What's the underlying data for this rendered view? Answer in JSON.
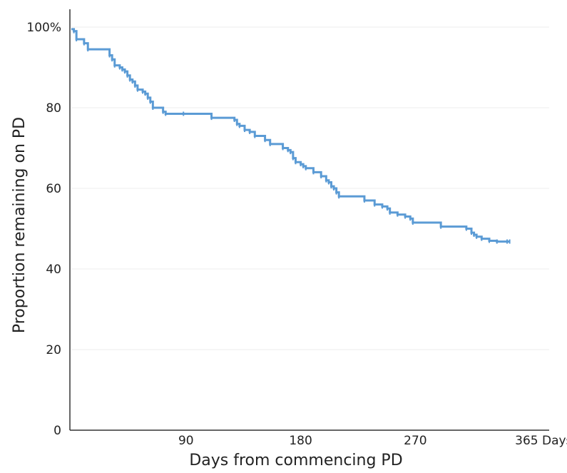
{
  "chart_data": {
    "type": "line",
    "step": true,
    "xlabel": "Days from commencing PD",
    "ylabel": "Proportion remaining on PD",
    "xlim": [
      0,
      375
    ],
    "ylim": [
      0,
      100
    ],
    "x_ticks": [
      {
        "value": 90,
        "label": "90"
      },
      {
        "value": 180,
        "label": "180"
      },
      {
        "value": 270,
        "label": "270"
      },
      {
        "value": 365,
        "label": "365 Days"
      }
    ],
    "y_ticks": [
      {
        "value": 0,
        "label": "0"
      },
      {
        "value": 20,
        "label": "20"
      },
      {
        "value": 40,
        "label": "40"
      },
      {
        "value": 60,
        "label": "60"
      },
      {
        "value": 80,
        "label": "80"
      },
      {
        "value": 100,
        "label": "100%"
      }
    ],
    "grid": true,
    "series": [
      {
        "color": "#5b9bd5",
        "x": [
          0,
          2,
          4,
          10,
          13,
          30,
          32,
          34,
          38,
          40,
          42,
          44,
          46,
          48,
          50,
          52,
          56,
          58,
          60,
          62,
          64,
          72,
          74,
          88,
          110,
          128,
          130,
          132,
          136,
          140,
          144,
          152,
          156,
          166,
          170,
          172,
          174,
          176,
          180,
          182,
          184,
          190,
          196,
          200,
          202,
          204,
          206,
          208,
          210,
          230,
          238,
          244,
          248,
          250,
          256,
          262,
          266,
          268,
          290,
          310,
          314,
          316,
          318,
          322,
          328,
          334,
          342,
          344
        ],
        "y": [
          99.5,
          99,
          97,
          96,
          94.5,
          93,
          92,
          90.5,
          90,
          89.5,
          89,
          88,
          87,
          86.5,
          85.5,
          84.5,
          84,
          83.5,
          82.5,
          81.5,
          80,
          79,
          78.5,
          78.5,
          77.5,
          77,
          76,
          75.5,
          74.5,
          74,
          73,
          72,
          71,
          70,
          69.5,
          69,
          67.5,
          66.5,
          66,
          65.5,
          65,
          64,
          63,
          62,
          61.5,
          60.5,
          60,
          59,
          58,
          57,
          56,
          55.5,
          55,
          54,
          53.5,
          53,
          52.5,
          51.5,
          50.5,
          50,
          49,
          48.5,
          48,
          47.5,
          47,
          46.8,
          46.8,
          46.8
        ]
      }
    ]
  }
}
